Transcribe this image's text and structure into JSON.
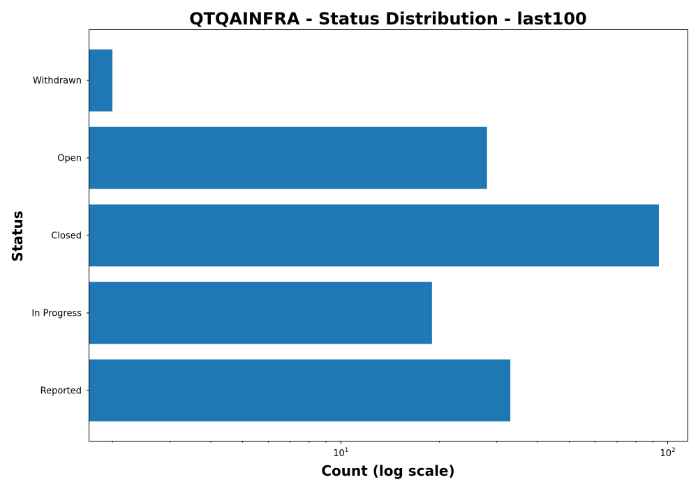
{
  "chart_data": {
    "type": "bar",
    "orientation": "horizontal",
    "title": "QTQAINFRA - Status Distribution - last100",
    "xlabel": "Count (log scale)",
    "ylabel": "Status",
    "x_scale": "log",
    "xlim": [
      1.7,
      115
    ],
    "categories": [
      "Reported",
      "In Progress",
      "Closed",
      "Open",
      "Withdrawn"
    ],
    "values": [
      33,
      19,
      94,
      28,
      2
    ],
    "bar_color": "#1f77b4",
    "grid": false,
    "x_major_ticks": [
      {
        "value": 10,
        "base": "10",
        "exp": "1"
      },
      {
        "value": 100,
        "base": "10",
        "exp": "2"
      }
    ],
    "x_minor_ticks": [
      2,
      3,
      4,
      5,
      6,
      7,
      8,
      9,
      20,
      30,
      40,
      50,
      60,
      70,
      80,
      90
    ]
  }
}
